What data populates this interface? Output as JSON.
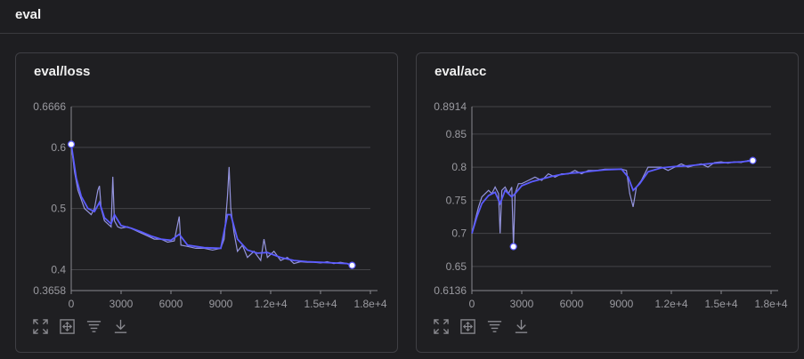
{
  "section": {
    "title": "eval"
  },
  "charts": [
    {
      "id": "loss",
      "title": "eval/loss",
      "type": "line",
      "xlim": [
        0,
        18000
      ],
      "ylim": [
        0.3658,
        0.6666
      ],
      "xticks": [
        0,
        3000,
        6000,
        9000,
        12000,
        15000,
        18000
      ],
      "xtick_labels": [
        "0",
        "3000",
        "6000",
        "9000",
        "1.2e+4",
        "1.5e+4",
        "1.8e+4"
      ],
      "yticks": [
        0.3658,
        0.4,
        0.5,
        0.6,
        0.6666
      ],
      "ytick_labels": [
        "0.3658",
        "0.4",
        "0.5",
        "0.6",
        "0.6666"
      ],
      "grid": true,
      "line_color": "#5b5bff",
      "raw_color": "#a9a9ff",
      "raw": [
        [
          0,
          0.605
        ],
        [
          200,
          0.56
        ],
        [
          400,
          0.53
        ],
        [
          600,
          0.515
        ],
        [
          800,
          0.5
        ],
        [
          1000,
          0.495
        ],
        [
          1200,
          0.49
        ],
        [
          1400,
          0.5
        ],
        [
          1600,
          0.53
        ],
        [
          1700,
          0.537
        ],
        [
          1800,
          0.5
        ],
        [
          2000,
          0.48
        ],
        [
          2200,
          0.475
        ],
        [
          2400,
          0.47
        ],
        [
          2500,
          0.552
        ],
        [
          2600,
          0.48
        ],
        [
          2800,
          0.47
        ],
        [
          3000,
          0.468
        ],
        [
          3400,
          0.47
        ],
        [
          3800,
          0.465
        ],
        [
          4200,
          0.46
        ],
        [
          4600,
          0.455
        ],
        [
          5000,
          0.45
        ],
        [
          5400,
          0.45
        ],
        [
          5800,
          0.445
        ],
        [
          6200,
          0.447
        ],
        [
          6500,
          0.487
        ],
        [
          6600,
          0.44
        ],
        [
          7000,
          0.438
        ],
        [
          7500,
          0.435
        ],
        [
          8000,
          0.435
        ],
        [
          8500,
          0.432
        ],
        [
          9000,
          0.435
        ],
        [
          9200,
          0.45
        ],
        [
          9400,
          0.52
        ],
        [
          9500,
          0.568
        ],
        [
          9600,
          0.5
        ],
        [
          9800,
          0.46
        ],
        [
          10000,
          0.43
        ],
        [
          10300,
          0.44
        ],
        [
          10600,
          0.42
        ],
        [
          11000,
          0.43
        ],
        [
          11400,
          0.415
        ],
        [
          11600,
          0.45
        ],
        [
          11800,
          0.42
        ],
        [
          12200,
          0.43
        ],
        [
          12600,
          0.415
        ],
        [
          13000,
          0.42
        ],
        [
          13400,
          0.41
        ],
        [
          13800,
          0.413
        ],
        [
          14200,
          0.412
        ],
        [
          14600,
          0.412
        ],
        [
          15000,
          0.411
        ],
        [
          15400,
          0.413
        ],
        [
          15800,
          0.41
        ],
        [
          16200,
          0.412
        ],
        [
          16600,
          0.41
        ],
        [
          16900,
          0.407
        ]
      ],
      "values": [
        [
          0,
          0.605
        ],
        [
          300,
          0.55
        ],
        [
          600,
          0.52
        ],
        [
          1000,
          0.5
        ],
        [
          1400,
          0.495
        ],
        [
          1700,
          0.51
        ],
        [
          2000,
          0.485
        ],
        [
          2400,
          0.475
        ],
        [
          2600,
          0.49
        ],
        [
          3000,
          0.472
        ],
        [
          3600,
          0.468
        ],
        [
          4200,
          0.462
        ],
        [
          4800,
          0.455
        ],
        [
          5400,
          0.45
        ],
        [
          6000,
          0.448
        ],
        [
          6500,
          0.458
        ],
        [
          7000,
          0.44
        ],
        [
          8000,
          0.436
        ],
        [
          9000,
          0.435
        ],
        [
          9400,
          0.49
        ],
        [
          9600,
          0.49
        ],
        [
          10000,
          0.45
        ],
        [
          10600,
          0.432
        ],
        [
          11200,
          0.427
        ],
        [
          11800,
          0.428
        ],
        [
          12600,
          0.42
        ],
        [
          13400,
          0.415
        ],
        [
          14200,
          0.413
        ],
        [
          15000,
          0.412
        ],
        [
          15800,
          0.411
        ],
        [
          16600,
          0.41
        ],
        [
          16900,
          0.407
        ]
      ],
      "markers": [
        [
          0,
          0.605
        ],
        [
          16900,
          0.407
        ]
      ]
    },
    {
      "id": "acc",
      "title": "eval/acc",
      "type": "line",
      "xlim": [
        0,
        18000
      ],
      "ylim": [
        0.6136,
        0.8914
      ],
      "xticks": [
        0,
        3000,
        6000,
        9000,
        12000,
        15000,
        18000
      ],
      "xtick_labels": [
        "0",
        "3000",
        "6000",
        "9000",
        "1.2e+4",
        "1.5e+4",
        "1.8e+4"
      ],
      "yticks": [
        0.6136,
        0.65,
        0.7,
        0.75,
        0.8,
        0.85,
        0.8914
      ],
      "ytick_labels": [
        "0.6136",
        "0.65",
        "0.7",
        "0.75",
        "0.8",
        "0.85",
        "0.8914"
      ],
      "grid": true,
      "line_color": "#5b5bff",
      "raw_color": "#a9a9ff",
      "raw": [
        [
          0,
          0.7
        ],
        [
          200,
          0.72
        ],
        [
          400,
          0.74
        ],
        [
          600,
          0.755
        ],
        [
          800,
          0.76
        ],
        [
          1000,
          0.765
        ],
        [
          1200,
          0.76
        ],
        [
          1400,
          0.77
        ],
        [
          1600,
          0.76
        ],
        [
          1700,
          0.7
        ],
        [
          1800,
          0.765
        ],
        [
          2000,
          0.77
        ],
        [
          2200,
          0.76
        ],
        [
          2400,
          0.77
        ],
        [
          2500,
          0.68
        ],
        [
          2600,
          0.76
        ],
        [
          2800,
          0.775
        ],
        [
          3000,
          0.775
        ],
        [
          3400,
          0.78
        ],
        [
          3800,
          0.785
        ],
        [
          4200,
          0.78
        ],
        [
          4600,
          0.79
        ],
        [
          5000,
          0.785
        ],
        [
          5400,
          0.79
        ],
        [
          5800,
          0.79
        ],
        [
          6200,
          0.795
        ],
        [
          6600,
          0.79
        ],
        [
          7000,
          0.795
        ],
        [
          7500,
          0.795
        ],
        [
          8000,
          0.797
        ],
        [
          8500,
          0.797
        ],
        [
          9000,
          0.797
        ],
        [
          9300,
          0.795
        ],
        [
          9500,
          0.76
        ],
        [
          9700,
          0.74
        ],
        [
          9900,
          0.77
        ],
        [
          10200,
          0.78
        ],
        [
          10600,
          0.8
        ],
        [
          11000,
          0.8
        ],
        [
          11400,
          0.8
        ],
        [
          11800,
          0.795
        ],
        [
          12200,
          0.8
        ],
        [
          12600,
          0.805
        ],
        [
          13000,
          0.8
        ],
        [
          13400,
          0.803
        ],
        [
          13800,
          0.805
        ],
        [
          14200,
          0.8
        ],
        [
          14600,
          0.807
        ],
        [
          15000,
          0.808
        ],
        [
          15400,
          0.806
        ],
        [
          15800,
          0.808
        ],
        [
          16200,
          0.807
        ],
        [
          16600,
          0.81
        ],
        [
          16900,
          0.81
        ]
      ],
      "values": [
        [
          0,
          0.7
        ],
        [
          300,
          0.725
        ],
        [
          600,
          0.745
        ],
        [
          1000,
          0.757
        ],
        [
          1400,
          0.762
        ],
        [
          1700,
          0.745
        ],
        [
          2000,
          0.765
        ],
        [
          2400,
          0.755
        ],
        [
          2600,
          0.76
        ],
        [
          3000,
          0.772
        ],
        [
          3600,
          0.778
        ],
        [
          4200,
          0.782
        ],
        [
          4800,
          0.786
        ],
        [
          5400,
          0.789
        ],
        [
          6000,
          0.791
        ],
        [
          6600,
          0.792
        ],
        [
          7200,
          0.794
        ],
        [
          8000,
          0.796
        ],
        [
          9000,
          0.797
        ],
        [
          9400,
          0.785
        ],
        [
          9700,
          0.765
        ],
        [
          10100,
          0.775
        ],
        [
          10600,
          0.793
        ],
        [
          11400,
          0.799
        ],
        [
          12200,
          0.801
        ],
        [
          13000,
          0.802
        ],
        [
          13800,
          0.804
        ],
        [
          14600,
          0.806
        ],
        [
          15400,
          0.807
        ],
        [
          16200,
          0.808
        ],
        [
          16900,
          0.81
        ]
      ],
      "markers": [
        [
          2500,
          0.68
        ],
        [
          16900,
          0.81
        ]
      ]
    }
  ]
}
